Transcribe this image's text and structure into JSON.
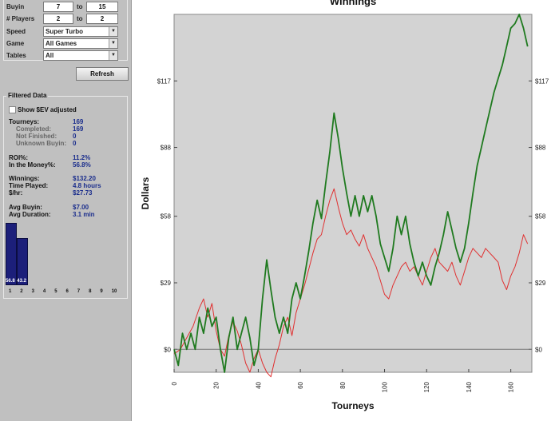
{
  "filters": {
    "buyin": {
      "label": "Buyin",
      "from": "7",
      "to_label": "to",
      "to": "15"
    },
    "players": {
      "label": "# Players",
      "from": "2",
      "to_label": "to",
      "to": "2"
    },
    "speed": {
      "label": "Speed",
      "value": "Super Turbo"
    },
    "game": {
      "label": "Game",
      "value": "All Games"
    },
    "tables": {
      "label": "Tables",
      "value": "All"
    },
    "refresh_label": "Refresh"
  },
  "filtered": {
    "title": "Filtered Data",
    "show_ev_label": "Show $EV adjusted",
    "tourneys_label": "Tourneys:",
    "tourneys": "169",
    "completed_label": "Completed:",
    "completed": "169",
    "not_finished_label": "Not Finished:",
    "not_finished": "0",
    "unknown_buyin_label": "Unknown Buyin:",
    "unknown_buyin": "0",
    "roi_label": "ROI%:",
    "roi": "11.2%",
    "itm_label": "In the Money%:",
    "itm": "56.8%",
    "winnings_label": "Winnings:",
    "winnings": "$132.20",
    "time_played_label": "Time Played:",
    "time_played": "4.8 hours",
    "per_hour_label": "$/hr:",
    "per_hour": "$27.73",
    "avg_buyin_label": "Avg Buyin:",
    "avg_buyin": "$7.00",
    "avg_duration_label": "Avg Duration:",
    "avg_duration": "3.1 min"
  },
  "finish_distribution": {
    "bars": [
      {
        "place": "1",
        "value": 56.8,
        "label": "56.8"
      },
      {
        "place": "2",
        "value": 43.2,
        "label": "43.2"
      }
    ],
    "axis_labels": [
      "1",
      "2",
      "3",
      "4",
      "5",
      "6",
      "7",
      "8",
      "9",
      "10"
    ]
  },
  "chart_data": {
    "type": "line",
    "title": "Winnings",
    "xlabel": "Tourneys",
    "ylabel": "Dollars",
    "xlim": [
      0,
      170
    ],
    "ylim": [
      -10,
      146
    ],
    "x_ticks": [
      "0",
      "20",
      "40",
      "60",
      "80",
      "100",
      "120",
      "140",
      "160"
    ],
    "y_ticks": [
      "$0",
      "$29",
      "$58",
      "$88",
      "$117"
    ],
    "colors": {
      "winnings": "#1f7a1f",
      "ev": "#e03030",
      "background": "#d3d3d3",
      "zero_line": "#777777"
    },
    "series": [
      {
        "key": "winnings",
        "color": "#1f7a1f",
        "points": [
          [
            0,
            0
          ],
          [
            2,
            -7
          ],
          [
            4,
            7
          ],
          [
            6,
            0
          ],
          [
            8,
            7
          ],
          [
            10,
            0
          ],
          [
            12,
            14
          ],
          [
            14,
            7
          ],
          [
            16,
            18
          ],
          [
            18,
            10
          ],
          [
            20,
            14
          ],
          [
            22,
            0
          ],
          [
            24,
            -10
          ],
          [
            26,
            5
          ],
          [
            28,
            14
          ],
          [
            30,
            0
          ],
          [
            32,
            7
          ],
          [
            34,
            14
          ],
          [
            36,
            5
          ],
          [
            38,
            -7
          ],
          [
            40,
            0
          ],
          [
            42,
            22
          ],
          [
            44,
            39
          ],
          [
            46,
            26
          ],
          [
            48,
            14
          ],
          [
            50,
            7
          ],
          [
            52,
            14
          ],
          [
            54,
            7
          ],
          [
            56,
            22
          ],
          [
            58,
            29
          ],
          [
            60,
            22
          ],
          [
            62,
            32
          ],
          [
            64,
            43
          ],
          [
            66,
            55
          ],
          [
            68,
            65
          ],
          [
            70,
            57
          ],
          [
            72,
            72
          ],
          [
            74,
            86
          ],
          [
            76,
            103
          ],
          [
            78,
            92
          ],
          [
            80,
            79
          ],
          [
            82,
            68
          ],
          [
            84,
            58
          ],
          [
            86,
            67
          ],
          [
            88,
            58
          ],
          [
            90,
            67
          ],
          [
            92,
            60
          ],
          [
            94,
            67
          ],
          [
            96,
            58
          ],
          [
            98,
            46
          ],
          [
            100,
            40
          ],
          [
            102,
            34
          ],
          [
            104,
            44
          ],
          [
            106,
            58
          ],
          [
            108,
            50
          ],
          [
            110,
            58
          ],
          [
            112,
            46
          ],
          [
            114,
            38
          ],
          [
            116,
            32
          ],
          [
            118,
            38
          ],
          [
            120,
            32
          ],
          [
            122,
            28
          ],
          [
            124,
            36
          ],
          [
            126,
            42
          ],
          [
            128,
            50
          ],
          [
            130,
            60
          ],
          [
            132,
            52
          ],
          [
            134,
            44
          ],
          [
            136,
            38
          ],
          [
            138,
            44
          ],
          [
            140,
            55
          ],
          [
            142,
            68
          ],
          [
            144,
            80
          ],
          [
            146,
            88
          ],
          [
            148,
            96
          ],
          [
            150,
            104
          ],
          [
            152,
            112
          ],
          [
            154,
            118
          ],
          [
            156,
            124
          ],
          [
            158,
            132
          ],
          [
            160,
            140
          ],
          [
            162,
            142
          ],
          [
            164,
            146
          ],
          [
            166,
            140
          ],
          [
            168,
            132
          ]
        ]
      },
      {
        "key": "ev",
        "color": "#e03030",
        "points": [
          [
            0,
            -2
          ],
          [
            3,
            0
          ],
          [
            6,
            5
          ],
          [
            9,
            10
          ],
          [
            12,
            18
          ],
          [
            14,
            22
          ],
          [
            16,
            14
          ],
          [
            18,
            20
          ],
          [
            20,
            8
          ],
          [
            22,
            0
          ],
          [
            24,
            -3
          ],
          [
            26,
            6
          ],
          [
            28,
            12
          ],
          [
            30,
            8
          ],
          [
            32,
            2
          ],
          [
            34,
            -6
          ],
          [
            36,
            -10
          ],
          [
            38,
            -4
          ],
          [
            40,
            0
          ],
          [
            42,
            -6
          ],
          [
            44,
            -10
          ],
          [
            46,
            -12
          ],
          [
            48,
            -4
          ],
          [
            50,
            2
          ],
          [
            52,
            10
          ],
          [
            54,
            14
          ],
          [
            56,
            6
          ],
          [
            58,
            16
          ],
          [
            60,
            22
          ],
          [
            62,
            28
          ],
          [
            64,
            35
          ],
          [
            66,
            42
          ],
          [
            68,
            48
          ],
          [
            70,
            50
          ],
          [
            72,
            58
          ],
          [
            74,
            65
          ],
          [
            76,
            70
          ],
          [
            78,
            62
          ],
          [
            80,
            55
          ],
          [
            82,
            50
          ],
          [
            84,
            52
          ],
          [
            86,
            48
          ],
          [
            88,
            45
          ],
          [
            90,
            50
          ],
          [
            92,
            44
          ],
          [
            94,
            40
          ],
          [
            96,
            36
          ],
          [
            98,
            30
          ],
          [
            100,
            24
          ],
          [
            102,
            22
          ],
          [
            104,
            28
          ],
          [
            106,
            32
          ],
          [
            108,
            36
          ],
          [
            110,
            38
          ],
          [
            112,
            34
          ],
          [
            114,
            36
          ],
          [
            116,
            32
          ],
          [
            118,
            28
          ],
          [
            120,
            34
          ],
          [
            122,
            40
          ],
          [
            124,
            44
          ],
          [
            126,
            38
          ],
          [
            128,
            36
          ],
          [
            130,
            34
          ],
          [
            132,
            38
          ],
          [
            134,
            32
          ],
          [
            136,
            28
          ],
          [
            138,
            34
          ],
          [
            140,
            40
          ],
          [
            142,
            44
          ],
          [
            144,
            42
          ],
          [
            146,
            40
          ],
          [
            148,
            44
          ],
          [
            150,
            42
          ],
          [
            152,
            40
          ],
          [
            154,
            38
          ],
          [
            156,
            30
          ],
          [
            158,
            26
          ],
          [
            160,
            32
          ],
          [
            162,
            36
          ],
          [
            164,
            42
          ],
          [
            166,
            50
          ],
          [
            168,
            46
          ]
        ]
      }
    ]
  }
}
